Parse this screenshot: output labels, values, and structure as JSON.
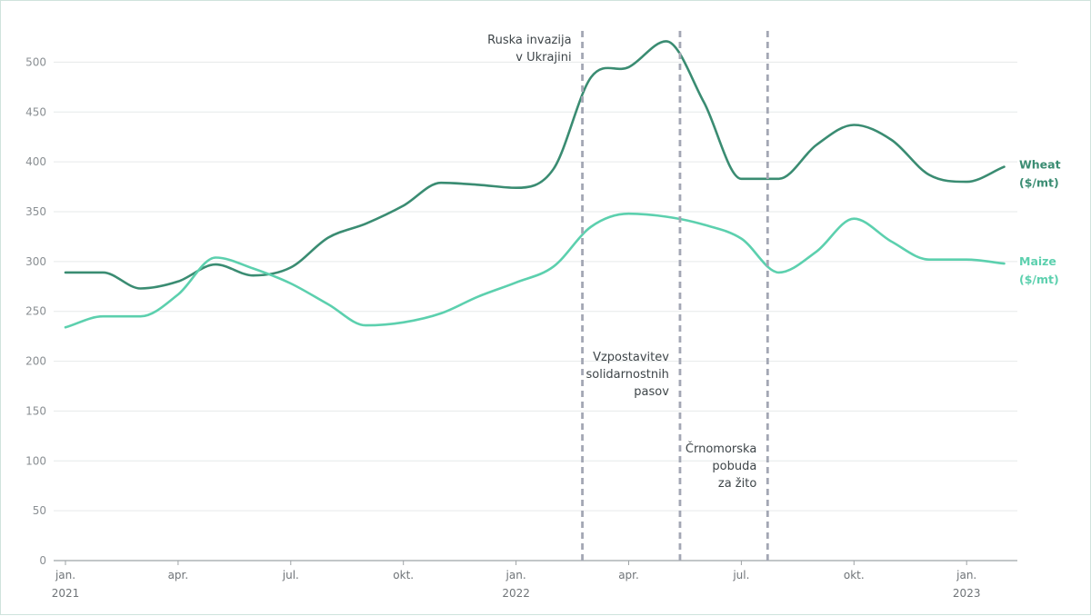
{
  "chart_data": {
    "type": "line",
    "title": "",
    "xlabel": "",
    "ylabel": "",
    "ylim": [
      0,
      525
    ],
    "yticks": [
      0,
      50,
      100,
      150,
      200,
      250,
      300,
      350,
      400,
      450,
      500
    ],
    "grid": "horizontal",
    "xlim": [
      "2021-01",
      "2023-04"
    ],
    "xticks": [
      {
        "x": "2021-01",
        "line1": "jan.",
        "line2": "2021"
      },
      {
        "x": "2021-04",
        "line1": "apr.",
        "line2": ""
      },
      {
        "x": "2021-07",
        "line1": "jul.",
        "line2": ""
      },
      {
        "x": "2021-10",
        "line1": "okt.",
        "line2": ""
      },
      {
        "x": "2022-01",
        "line1": "jan.",
        "line2": "2022"
      },
      {
        "x": "2022-04",
        "line1": "apr.",
        "line2": ""
      },
      {
        "x": "2022-07",
        "line1": "jul.",
        "line2": ""
      },
      {
        "x": "2022-10",
        "line1": "okt.",
        "line2": ""
      },
      {
        "x": "2023-01",
        "line1": "jan.",
        "line2": "2023"
      }
    ],
    "x": [
      "2021-01",
      "2021-02",
      "2021-03",
      "2021-04",
      "2021-05",
      "2021-06",
      "2021-07",
      "2021-08",
      "2021-09",
      "2021-10",
      "2021-11",
      "2021-12",
      "2022-01",
      "2022-02",
      "2022-03",
      "2022-04",
      "2022-05",
      "2022-06",
      "2022-07",
      "2022-08",
      "2022-09",
      "2022-10",
      "2022-11",
      "2022-12",
      "2023-01",
      "2023-02"
    ],
    "series": [
      {
        "name": "Wheat",
        "label_lines": [
          "Wheat",
          "($/mt)"
        ],
        "color": "#3a8c72",
        "values": [
          289,
          289,
          273,
          280,
          297,
          286,
          294,
          324,
          338,
          356,
          379,
          377,
          374,
          393,
          485,
          495,
          521,
          460,
          383,
          383,
          417,
          437,
          422,
          387,
          380,
          395
        ]
      },
      {
        "name": "Maize",
        "label_lines": [
          "Maize",
          "($/mt)"
        ],
        "color": "#5cd0ae",
        "values": [
          234,
          245,
          245,
          267,
          304,
          293,
          278,
          257,
          236,
          239,
          248,
          265,
          279,
          295,
          335,
          348,
          345,
          337,
          323,
          289,
          310,
          343,
          320,
          302,
          302,
          298
        ]
      }
    ],
    "annotations": [
      {
        "x": "2022-02-24",
        "lines": [
          "Ruska invazija",
          "v Ukrajini"
        ],
        "side": "left",
        "level": "top"
      },
      {
        "x": "2022-05-12",
        "lines": [
          "Vzpostavitev",
          "solidarnostnih",
          "pasov"
        ],
        "side": "left",
        "level": "middle"
      },
      {
        "x": "2022-07-22",
        "lines": [
          "Črnomorska",
          "pobuda",
          "za žito"
        ],
        "side": "left",
        "level": "lower"
      }
    ],
    "annotation_line_color": "#a3a7b4"
  }
}
